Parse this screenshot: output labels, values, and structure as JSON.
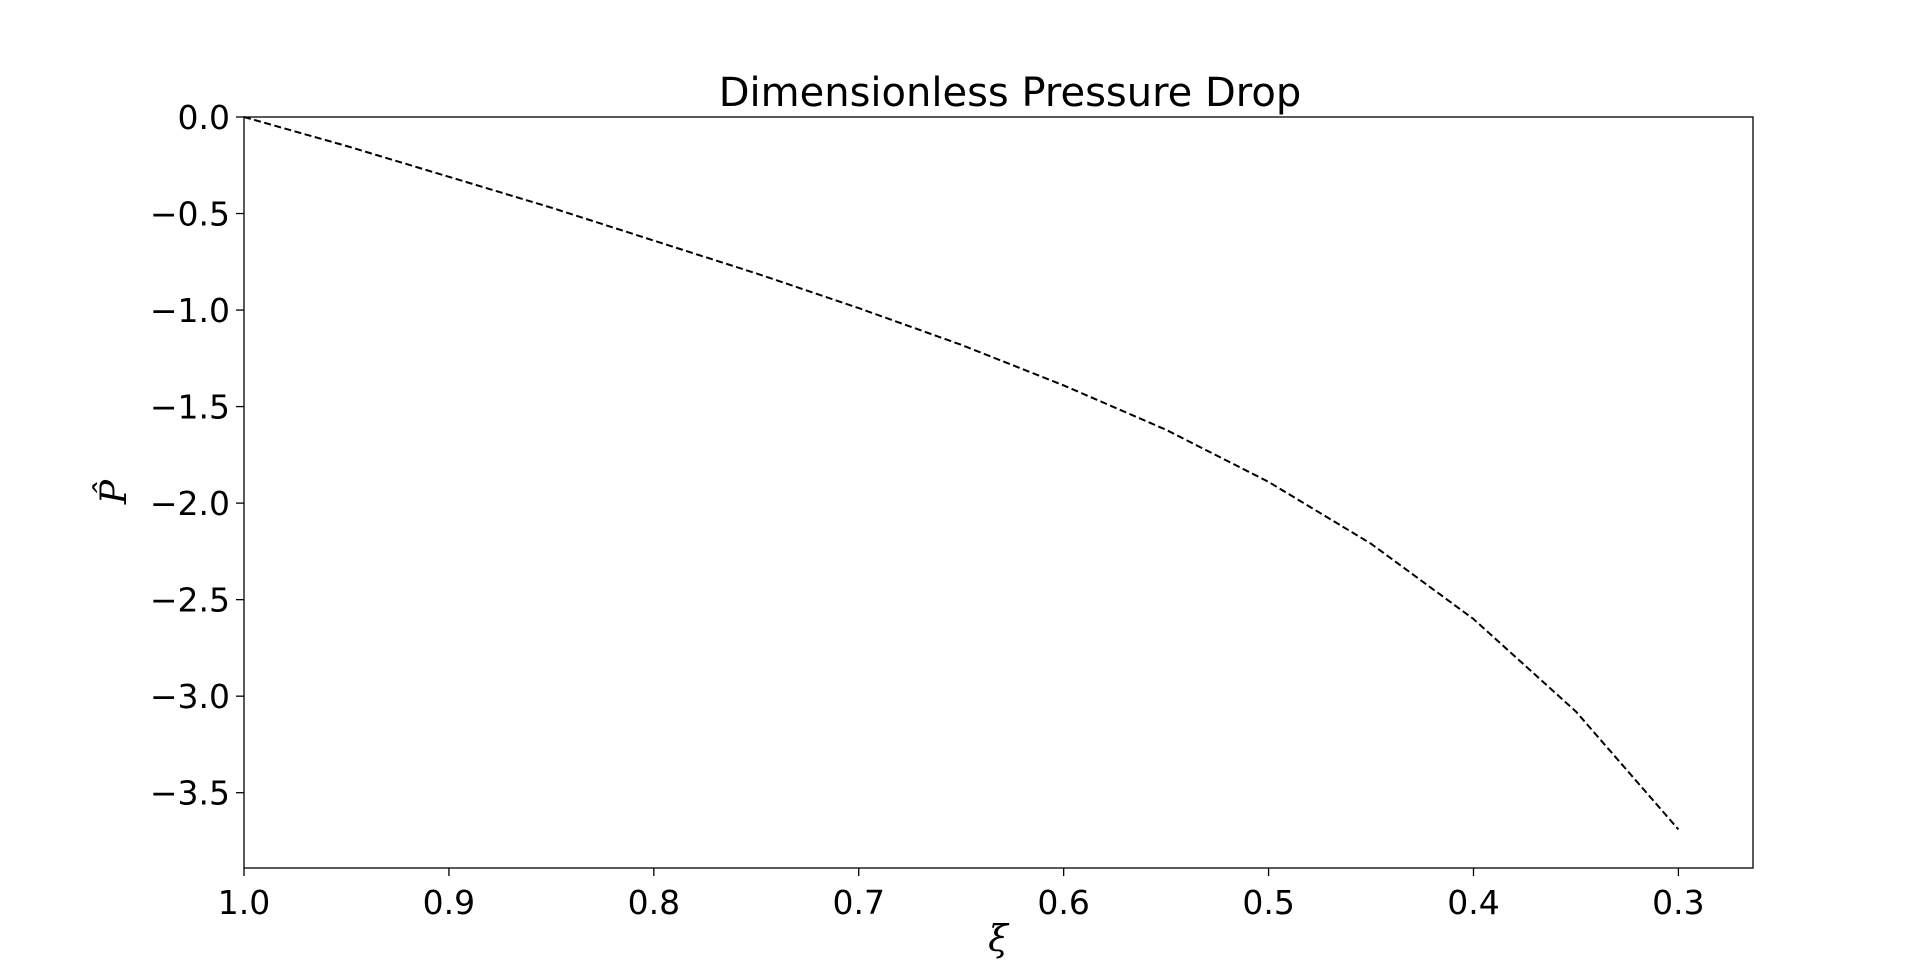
{
  "chart_data": {
    "type": "line",
    "title": "Dimensionless Pressure Drop",
    "xlabel": "ξ",
    "ylabel": "P̂",
    "x_axis_inverted": true,
    "xlim": [
      1.0,
      0.2636
    ],
    "ylim": [
      -3.89,
      0.0
    ],
    "xticks": [
      1.0,
      0.9,
      0.8,
      0.7,
      0.6,
      0.5,
      0.4,
      0.3
    ],
    "xtick_labels": [
      "1.0",
      "0.9",
      "0.8",
      "0.7",
      "0.6",
      "0.5",
      "0.4",
      "0.3"
    ],
    "yticks": [
      0.0,
      -0.5,
      -1.0,
      -1.5,
      -2.0,
      -2.5,
      -3.0,
      -3.5
    ],
    "ytick_labels": [
      "0.0",
      "−0.5",
      "−1.0",
      "−1.5",
      "−2.0",
      "−2.5",
      "−3.0",
      "−3.5"
    ],
    "grid": false,
    "legend": "none",
    "series": [
      {
        "line_style": "dashed",
        "color": "#000000",
        "x": [
          1.0,
          0.95,
          0.9,
          0.85,
          0.8,
          0.75,
          0.7,
          0.65,
          0.6,
          0.55,
          0.5,
          0.45,
          0.4,
          0.35,
          0.3
        ],
        "y": [
          0.0,
          -0.15,
          -0.31,
          -0.47,
          -0.64,
          -0.81,
          -0.99,
          -1.18,
          -1.39,
          -1.62,
          -1.89,
          -2.21,
          -2.6,
          -3.08,
          -3.69
        ]
      }
    ]
  }
}
